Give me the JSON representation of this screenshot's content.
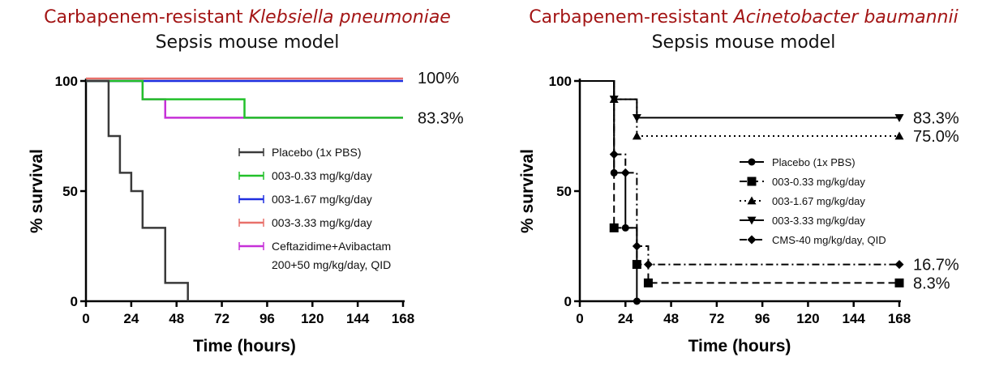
{
  "chart_data": [
    {
      "type": "line",
      "subtype": "kaplan-meier step",
      "title": "Carbapenem-resistant",
      "title_italic": "Klebsiella pneumoniae",
      "subtitle": "Sepsis mouse model",
      "xlabel": "Time (hours)",
      "ylabel": "% survival",
      "xlim": [
        0,
        168
      ],
      "ylim": [
        0,
        100
      ],
      "xticks": [
        0,
        24,
        48,
        72,
        96,
        120,
        144,
        168
      ],
      "yticks": [
        0,
        50,
        100
      ],
      "grid": false,
      "legend_position": "center-right",
      "annotations": [
        {
          "text": "100%",
          "y": 100
        },
        {
          "text": "83.3%",
          "y": 83.3
        }
      ],
      "series": [
        {
          "name": "Placebo (1x PBS)",
          "color": "#3a3a3a",
          "x": [
            0,
            12,
            18,
            24,
            30,
            42,
            54
          ],
          "y": [
            100,
            75,
            58.3,
            50,
            33.3,
            8.3,
            0
          ]
        },
        {
          "name": "003-0.33 mg/kg/day",
          "color": "#22c02a",
          "x": [
            0,
            30,
            84,
            168
          ],
          "y": [
            100,
            91.7,
            83.3,
            83.3
          ]
        },
        {
          "name": "003-1.67 mg/kg/day",
          "color": "#1f2fe0",
          "x": [
            0,
            168
          ],
          "y": [
            100,
            100
          ]
        },
        {
          "name": "003-3.33 mg/kg/day",
          "color": "#e8706a",
          "x": [
            0,
            168
          ],
          "y": [
            100,
            100
          ]
        },
        {
          "name": "Ceftazidime+Avibactam",
          "name_line2": "200+50 mg/kg/day, QID",
          "color": "#c630d8",
          "x": [
            0,
            30,
            42,
            168
          ],
          "y": [
            100,
            91.7,
            83.3,
            83.3
          ]
        }
      ]
    },
    {
      "type": "line",
      "subtype": "kaplan-meier step",
      "title": "Carbapenem-resistant",
      "title_italic": "Acinetobacter baumannii",
      "subtitle": "Sepsis mouse model",
      "xlabel": "Time (hours)",
      "ylabel": "% survival",
      "xlim": [
        0,
        168
      ],
      "ylim": [
        0,
        100
      ],
      "xticks": [
        0,
        24,
        48,
        72,
        96,
        120,
        144,
        168
      ],
      "yticks": [
        0,
        50,
        100
      ],
      "grid": false,
      "legend_position": "center-right",
      "annotations": [
        {
          "text": "83.3%",
          "y": 83.3
        },
        {
          "text": "75.0%",
          "y": 75
        },
        {
          "text": "16.7%",
          "y": 16.7
        },
        {
          "text": "8.3%",
          "y": 8.3
        }
      ],
      "series": [
        {
          "name": "Placebo (1x PBS)",
          "color": "#000000",
          "dash": "solid",
          "marker": "circle",
          "x": [
            0,
            18,
            24,
            30
          ],
          "y": [
            100,
            58.3,
            33.3,
            0
          ]
        },
        {
          "name": "003-0.33 mg/kg/day",
          "color": "#000000",
          "dash": "dashed",
          "marker": "square",
          "x": [
            0,
            18,
            30,
            36,
            168
          ],
          "y": [
            100,
            33.3,
            16.7,
            8.3,
            8.3
          ]
        },
        {
          "name": "003-1.67 mg/kg/day",
          "color": "#000000",
          "dash": "dotted",
          "marker": "triangle-up",
          "x": [
            0,
            18,
            30,
            168
          ],
          "y": [
            100,
            91.7,
            75,
            75
          ]
        },
        {
          "name": "003-3.33 mg/kg/day",
          "color": "#000000",
          "dash": "solid",
          "marker": "triangle-down",
          "x": [
            0,
            18,
            30,
            168
          ],
          "y": [
            100,
            91.7,
            83.3,
            83.3
          ]
        },
        {
          "name": "CMS-40 mg/kg/day, QID",
          "color": "#000000",
          "dash": "dashdot",
          "marker": "diamond",
          "x": [
            0,
            18,
            24,
            30,
            36,
            168
          ],
          "y": [
            100,
            66.7,
            58.3,
            25,
            16.7,
            16.7
          ]
        }
      ]
    }
  ]
}
